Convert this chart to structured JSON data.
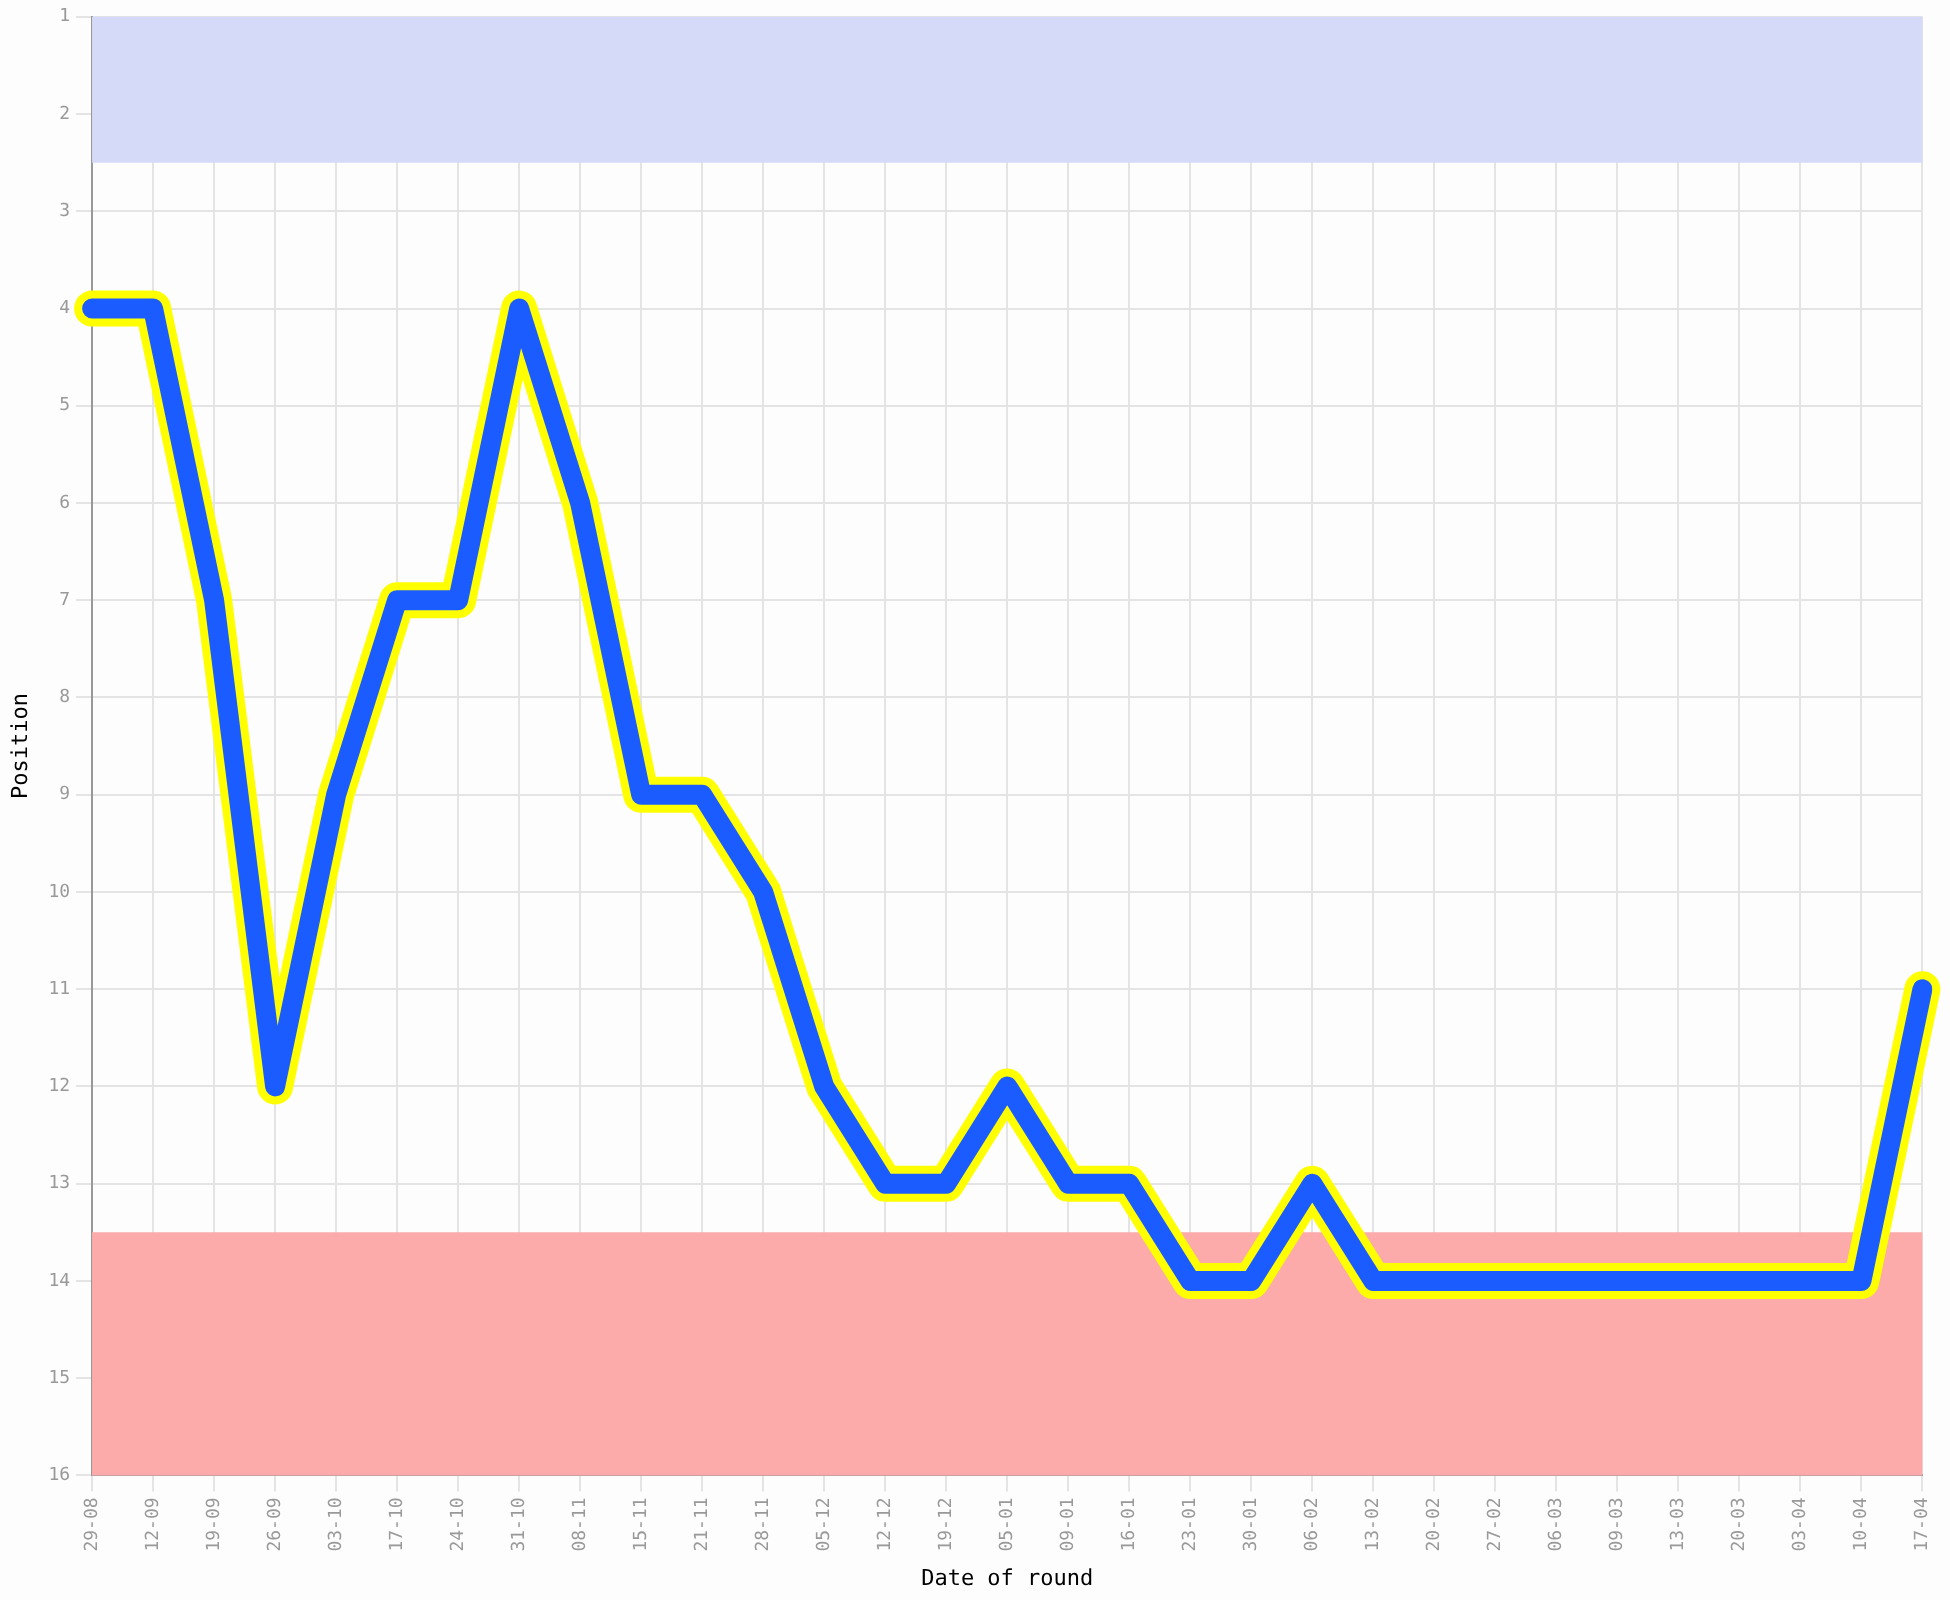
{
  "chart_data": {
    "type": "line",
    "xlabel": "Date of round",
    "ylabel": "Position",
    "categories": [
      "29-08",
      "12-09",
      "19-09",
      "26-09",
      "03-10",
      "17-10",
      "24-10",
      "31-10",
      "08-11",
      "15-11",
      "21-11",
      "28-11",
      "05-12",
      "12-12",
      "19-12",
      "05-01",
      "09-01",
      "16-01",
      "23-01",
      "30-01",
      "06-02",
      "13-02",
      "20-02",
      "27-02",
      "06-03",
      "09-03",
      "13-03",
      "20-03",
      "03-04",
      "10-04",
      "17-04"
    ],
    "series": [
      {
        "color": "#1a5cff",
        "values": [
          4,
          4,
          7,
          12,
          9,
          7,
          7,
          4,
          6,
          9,
          9,
          10,
          12,
          13,
          13,
          12,
          13,
          13,
          14,
          14,
          13,
          14,
          14,
          14,
          14,
          14,
          14,
          14,
          14,
          14,
          11
        ]
      }
    ],
    "ylim": [
      16,
      1
    ],
    "yticks": [
      1,
      2,
      3,
      4,
      5,
      6,
      7,
      8,
      9,
      10,
      11,
      12,
      13,
      14,
      15,
      16
    ],
    "bands": [
      {
        "axis": "y",
        "from": 1,
        "to": 2.5,
        "color": "#d4daf7"
      },
      {
        "axis": "y",
        "from": 13.5,
        "to": 16,
        "color": "#fcaaaa"
      }
    ],
    "grid": true,
    "legend": false,
    "marker": "none",
    "line_style": "solid"
  }
}
